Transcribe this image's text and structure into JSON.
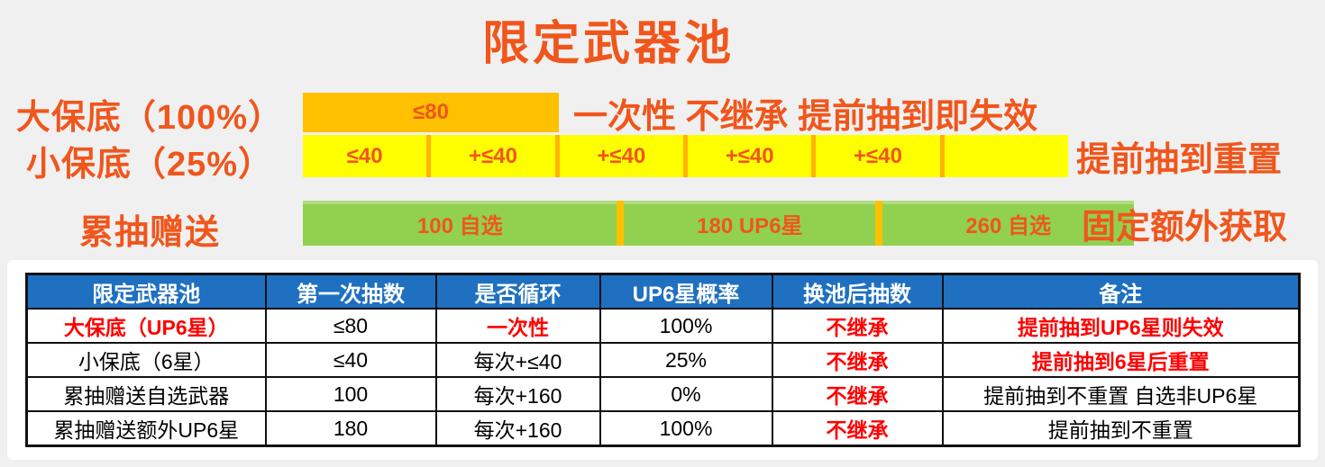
{
  "title": "限定武器池",
  "colors": {
    "accent_orange": "#f0561c",
    "bar_gold": "#ffc000",
    "bar_yellow": "#ffff00",
    "bar_green": "#92d050",
    "header_blue": "#1f70c0",
    "alert_red": "#ff0000"
  },
  "diagram": {
    "rows": [
      {
        "label": "大保底（100%）",
        "segments": [
          "≤80"
        ],
        "note": "一次性 不继承 提前抽到即失效"
      },
      {
        "label": "小保底（25%）",
        "segments": [
          "≤40",
          "+≤40",
          "+≤40",
          "+≤40",
          "+≤40",
          ""
        ],
        "note": "提前抽到重置"
      },
      {
        "label": "累抽赠送",
        "segments": [
          "100 自选",
          "180 UP6星",
          "260 自选"
        ],
        "note": "固定额外获取"
      }
    ]
  },
  "table": {
    "headers": [
      "限定武器池",
      "第一次抽数",
      "是否循环",
      "UP6星概率",
      "换池后抽数",
      "备注"
    ],
    "rows": [
      {
        "cells": [
          "大保底（UP6星）",
          "≤80",
          "一次性",
          "100%",
          "不继承",
          "提前抽到UP6星则失效"
        ]
      },
      {
        "cells": [
          "小保底（6星）",
          "≤40",
          "每次+≤40",
          "25%",
          "不继承",
          "提前抽到6星后重置"
        ]
      },
      {
        "cells": [
          "累抽赠送自选武器",
          "100",
          "每次+160",
          "0%",
          "不继承",
          "提前抽到不重置 自选非UP6星"
        ]
      },
      {
        "cells": [
          "累抽赠送额外UP6星",
          "180",
          "每次+160",
          "100%",
          "不继承",
          "提前抽到不重置"
        ]
      }
    ]
  }
}
